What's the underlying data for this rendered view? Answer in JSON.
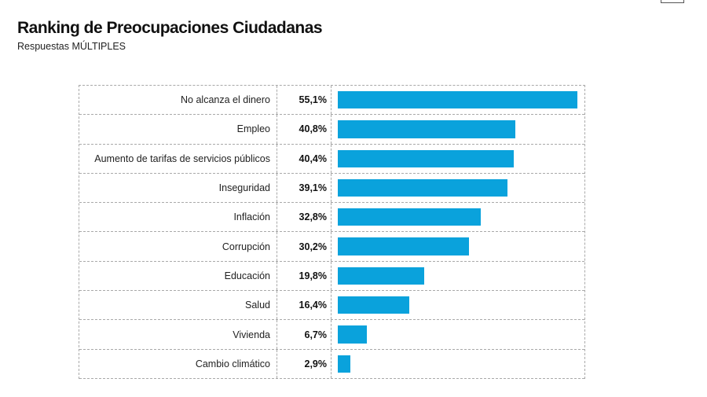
{
  "header": {
    "title": "Ranking de Preocupaciones Ciudadanas",
    "subtitle": "Respuestas MÚLTIPLES"
  },
  "colors": {
    "bar": "#0aa2dc",
    "grid": "#a9a9a9"
  },
  "chart_data": {
    "type": "bar",
    "orientation": "horizontal",
    "title": "Ranking de Preocupaciones Ciudadanas",
    "subtitle": "Respuestas MÚLTIPLES",
    "categories": [
      "No alcanza el dinero",
      "Empleo",
      "Aumento de tarifas de servicios públicos",
      "Inseguridad",
      "Inflación",
      "Corrupción",
      "Educación",
      "Salud",
      "Vivienda",
      "Cambio climático"
    ],
    "values": [
      55.1,
      40.8,
      40.4,
      39.1,
      32.8,
      30.2,
      19.8,
      16.4,
      6.7,
      2.9
    ],
    "value_labels": [
      "55,1%",
      "40,8%",
      "40,4%",
      "39,1%",
      "32,8%",
      "30,2%",
      "19,8%",
      "16,4%",
      "6,7%",
      "2,9%"
    ],
    "unit": "%",
    "xlim": [
      0,
      55.1
    ],
    "grid": true,
    "legend": "none"
  }
}
